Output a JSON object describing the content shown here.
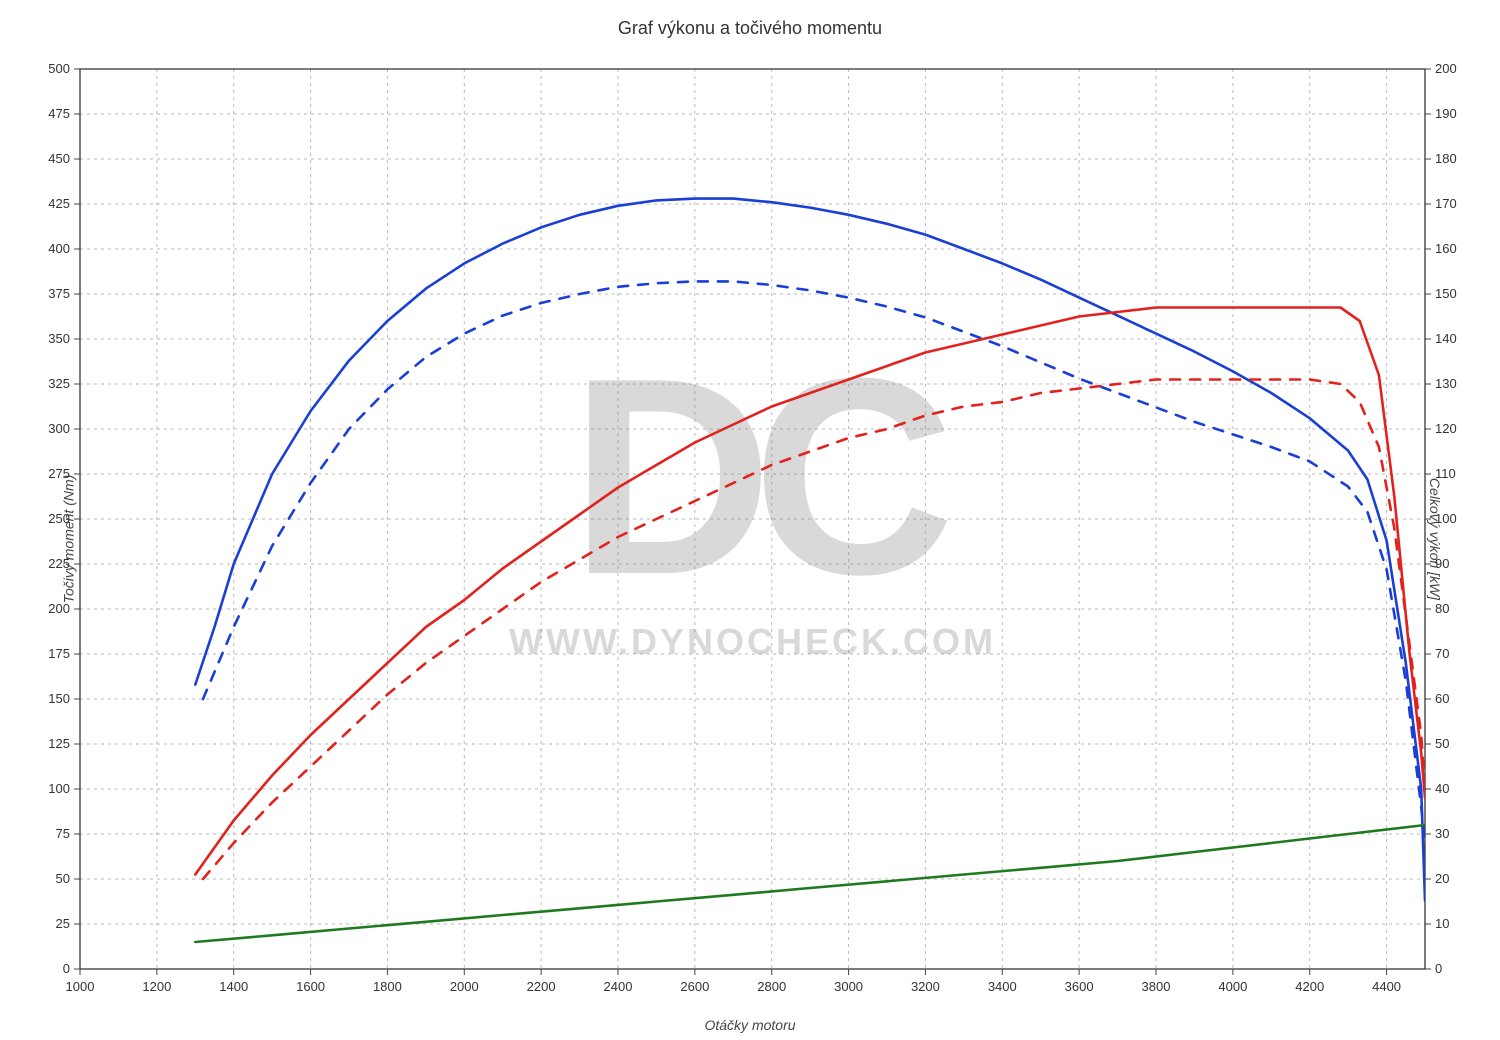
{
  "title": "Graf výkonu a točivého momentu",
  "x_axis": {
    "label": "Otáčky motoru",
    "min": 1000,
    "max": 4500,
    "tick_step": 200,
    "label_fontsize": 14,
    "tick_fontsize": 13,
    "tick_color": "#333333"
  },
  "y_left": {
    "label": "Točivý moment (Nm)",
    "min": 0,
    "max": 500,
    "tick_step": 25,
    "label_fontsize": 14,
    "tick_fontsize": 13,
    "tick_color": "#333333"
  },
  "y_right": {
    "label": "Celkový výkon [kW]",
    "min": 0,
    "max": 200,
    "tick_step": 10,
    "label_fontsize": 14,
    "tick_fontsize": 13,
    "tick_color": "#333333"
  },
  "plot": {
    "background_color": "#ffffff",
    "border_color": "#444444",
    "grid_color": "#808080",
    "grid_dash": "3,4",
    "grid_width": 1
  },
  "watermark": {
    "text_top_letters": "DC",
    "text_bottom": "WWW.DYNOCHECK.COM",
    "color": "#d9d9d9",
    "font_top_size": 280,
    "font_bottom_size": 36
  },
  "series": [
    {
      "name": "torque_tuned",
      "axis": "left",
      "color": "#1a3fd6",
      "width": 2.6,
      "dash": "none",
      "points": [
        [
          1300,
          158
        ],
        [
          1350,
          190
        ],
        [
          1400,
          225
        ],
        [
          1500,
          275
        ],
        [
          1600,
          310
        ],
        [
          1700,
          338
        ],
        [
          1800,
          360
        ],
        [
          1900,
          378
        ],
        [
          2000,
          392
        ],
        [
          2100,
          403
        ],
        [
          2200,
          412
        ],
        [
          2300,
          419
        ],
        [
          2400,
          424
        ],
        [
          2500,
          427
        ],
        [
          2600,
          428
        ],
        [
          2700,
          428
        ],
        [
          2800,
          426
        ],
        [
          2900,
          423
        ],
        [
          3000,
          419
        ],
        [
          3100,
          414
        ],
        [
          3200,
          408
        ],
        [
          3300,
          400
        ],
        [
          3400,
          392
        ],
        [
          3500,
          383
        ],
        [
          3600,
          373
        ],
        [
          3700,
          363
        ],
        [
          3800,
          353
        ],
        [
          3900,
          343
        ],
        [
          4000,
          332
        ],
        [
          4100,
          320
        ],
        [
          4200,
          306
        ],
        [
          4300,
          288
        ],
        [
          4350,
          272
        ],
        [
          4400,
          238
        ],
        [
          4450,
          170
        ],
        [
          4490,
          100
        ],
        [
          4500,
          38
        ]
      ]
    },
    {
      "name": "torque_stock",
      "axis": "left",
      "color": "#1a3fd6",
      "width": 2.6,
      "dash": "10,10",
      "points": [
        [
          1320,
          150
        ],
        [
          1400,
          190
        ],
        [
          1500,
          235
        ],
        [
          1600,
          270
        ],
        [
          1700,
          300
        ],
        [
          1800,
          322
        ],
        [
          1900,
          340
        ],
        [
          2000,
          353
        ],
        [
          2100,
          363
        ],
        [
          2200,
          370
        ],
        [
          2300,
          375
        ],
        [
          2400,
          379
        ],
        [
          2500,
          381
        ],
        [
          2600,
          382
        ],
        [
          2700,
          382
        ],
        [
          2800,
          380
        ],
        [
          2900,
          377
        ],
        [
          3000,
          373
        ],
        [
          3100,
          368
        ],
        [
          3200,
          362
        ],
        [
          3300,
          354
        ],
        [
          3400,
          346
        ],
        [
          3500,
          337
        ],
        [
          3600,
          328
        ],
        [
          3700,
          320
        ],
        [
          3800,
          312
        ],
        [
          3900,
          304
        ],
        [
          4000,
          297
        ],
        [
          4100,
          290
        ],
        [
          4200,
          282
        ],
        [
          4300,
          268
        ],
        [
          4350,
          254
        ],
        [
          4400,
          222
        ],
        [
          4450,
          160
        ],
        [
          4490,
          90
        ],
        [
          4500,
          70
        ]
      ]
    },
    {
      "name": "power_tuned",
      "axis": "right",
      "color": "#e1221d",
      "width": 2.6,
      "dash": "none",
      "points": [
        [
          1300,
          21
        ],
        [
          1400,
          33
        ],
        [
          1500,
          43
        ],
        [
          1600,
          52
        ],
        [
          1700,
          60
        ],
        [
          1800,
          68
        ],
        [
          1900,
          76
        ],
        [
          2000,
          82
        ],
        [
          2100,
          89
        ],
        [
          2200,
          95
        ],
        [
          2300,
          101
        ],
        [
          2400,
          107
        ],
        [
          2500,
          112
        ],
        [
          2600,
          117
        ],
        [
          2700,
          121
        ],
        [
          2800,
          125
        ],
        [
          2900,
          128
        ],
        [
          3000,
          131
        ],
        [
          3100,
          134
        ],
        [
          3200,
          137
        ],
        [
          3300,
          139
        ],
        [
          3400,
          141
        ],
        [
          3500,
          143
        ],
        [
          3600,
          145
        ],
        [
          3700,
          146
        ],
        [
          3800,
          147
        ],
        [
          3900,
          147
        ],
        [
          4000,
          147
        ],
        [
          4100,
          147
        ],
        [
          4200,
          147
        ],
        [
          4280,
          147
        ],
        [
          4330,
          144
        ],
        [
          4380,
          132
        ],
        [
          4420,
          105
        ],
        [
          4460,
          70
        ],
        [
          4490,
          48
        ],
        [
          4500,
          38
        ]
      ]
    },
    {
      "name": "power_stock",
      "axis": "right",
      "color": "#e1221d",
      "width": 2.6,
      "dash": "10,10",
      "points": [
        [
          1320,
          20
        ],
        [
          1400,
          28
        ],
        [
          1500,
          37
        ],
        [
          1600,
          45
        ],
        [
          1700,
          53
        ],
        [
          1800,
          61
        ],
        [
          1900,
          68
        ],
        [
          2000,
          74
        ],
        [
          2100,
          80
        ],
        [
          2200,
          86
        ],
        [
          2300,
          91
        ],
        [
          2400,
          96
        ],
        [
          2500,
          100
        ],
        [
          2600,
          104
        ],
        [
          2700,
          108
        ],
        [
          2800,
          112
        ],
        [
          2900,
          115
        ],
        [
          3000,
          118
        ],
        [
          3100,
          120
        ],
        [
          3200,
          123
        ],
        [
          3300,
          125
        ],
        [
          3400,
          126
        ],
        [
          3500,
          128
        ],
        [
          3600,
          129
        ],
        [
          3700,
          130
        ],
        [
          3800,
          131
        ],
        [
          3900,
          131
        ],
        [
          4000,
          131
        ],
        [
          4100,
          131
        ],
        [
          4200,
          131
        ],
        [
          4280,
          130
        ],
        [
          4330,
          126
        ],
        [
          4380,
          116
        ],
        [
          4420,
          98
        ],
        [
          4460,
          72
        ],
        [
          4490,
          52
        ],
        [
          4500,
          40
        ]
      ]
    },
    {
      "name": "losses",
      "axis": "right",
      "color": "#1f7a1f",
      "width": 2.6,
      "dash": "none",
      "points": [
        [
          1300,
          6
        ],
        [
          1500,
          7.5
        ],
        [
          1700,
          9
        ],
        [
          1900,
          10.5
        ],
        [
          2100,
          12
        ],
        [
          2300,
          13.5
        ],
        [
          2500,
          15
        ],
        [
          2700,
          16.5
        ],
        [
          2900,
          18
        ],
        [
          3100,
          19.5
        ],
        [
          3300,
          21
        ],
        [
          3500,
          22.5
        ],
        [
          3700,
          24
        ],
        [
          3900,
          26
        ],
        [
          4100,
          28
        ],
        [
          4300,
          30
        ],
        [
          4500,
          32
        ]
      ]
    }
  ]
}
